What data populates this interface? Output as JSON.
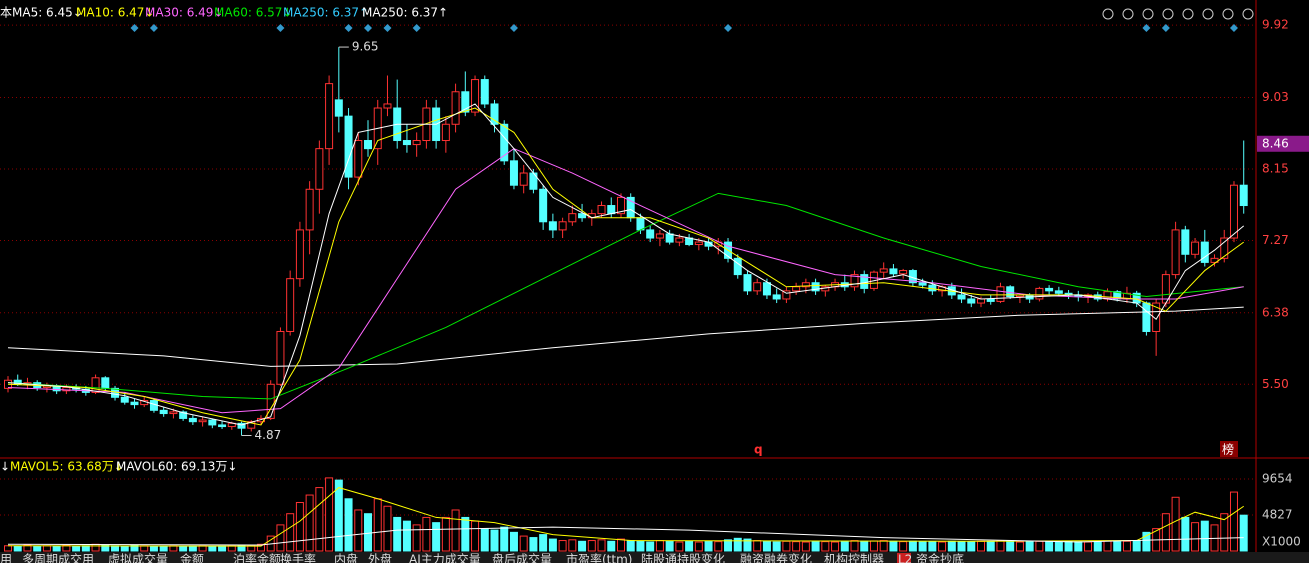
{
  "chart_data": {
    "type": "candlestick",
    "header_legend": [
      {
        "text": "本",
        "color": "#ffffff"
      },
      {
        "text": "MA5: 6.45↓",
        "color": "#ffffff"
      },
      {
        "text": "MA10: 6.47↓",
        "color": "#ffff00"
      },
      {
        "text": "MA30: 6.49↓",
        "color": "#ff66ff"
      },
      {
        "text": "MA60: 6.57↓",
        "color": "#00e600"
      },
      {
        "text": "MA250: 6.37↑",
        "color": "#33ccff"
      },
      {
        "text": "MA250: 6.37↑",
        "color": "#ffffff"
      }
    ],
    "ylim": [
      4.63,
      10.18
    ],
    "yticks": [
      9.92,
      9.03,
      8.15,
      7.27,
      6.38,
      {
        "value": 5.5,
        "label": "5.50"
      }
    ],
    "price_tag": 8.46,
    "up_color": "#ff3232",
    "down_color": "#54ffff",
    "grid_color": "#8b0000",
    "candles": [
      [
        5.45,
        5.6,
        5.4,
        5.55
      ],
      [
        5.55,
        5.62,
        5.48,
        5.5
      ],
      [
        5.5,
        5.58,
        5.44,
        5.52
      ],
      [
        5.52,
        5.55,
        5.42,
        5.46
      ],
      [
        5.46,
        5.52,
        5.4,
        5.48
      ],
      [
        5.48,
        5.5,
        5.38,
        5.42
      ],
      [
        5.42,
        5.5,
        5.38,
        5.46
      ],
      [
        5.46,
        5.5,
        5.4,
        5.44
      ],
      [
        5.44,
        5.48,
        5.36,
        5.4
      ],
      [
        5.4,
        5.62,
        5.38,
        5.58
      ],
      [
        5.58,
        5.6,
        5.42,
        5.45
      ],
      [
        5.45,
        5.48,
        5.3,
        5.34
      ],
      [
        5.34,
        5.4,
        5.25,
        5.28
      ],
      [
        5.28,
        5.32,
        5.2,
        5.25
      ],
      [
        5.25,
        5.35,
        5.22,
        5.3
      ],
      [
        5.3,
        5.32,
        5.15,
        5.18
      ],
      [
        5.18,
        5.22,
        5.1,
        5.14
      ],
      [
        5.14,
        5.2,
        5.08,
        5.16
      ],
      [
        5.16,
        5.18,
        5.05,
        5.08
      ],
      [
        5.08,
        5.12,
        5.0,
        5.04
      ],
      [
        5.04,
        5.1,
        4.98,
        5.06
      ],
      [
        5.06,
        5.08,
        4.96,
        5.0
      ],
      [
        5.0,
        5.05,
        4.95,
        4.98
      ],
      [
        4.98,
        5.04,
        4.94,
        5.02
      ],
      [
        5.02,
        5.04,
        4.87,
        4.96
      ],
      [
        4.96,
        5.06,
        4.92,
        5.04
      ],
      [
        5.04,
        5.12,
        5.0,
        5.08
      ],
      [
        5.08,
        5.55,
        5.06,
        5.5
      ],
      [
        5.5,
        6.2,
        5.48,
        6.15
      ],
      [
        6.15,
        6.9,
        6.1,
        6.8
      ],
      [
        6.8,
        7.5,
        6.7,
        7.4
      ],
      [
        7.4,
        8.0,
        7.1,
        7.9
      ],
      [
        7.9,
        8.5,
        7.6,
        8.4
      ],
      [
        8.4,
        9.3,
        8.2,
        9.2
      ],
      [
        9.0,
        9.65,
        8.6,
        8.8
      ],
      [
        8.8,
        8.9,
        7.9,
        8.05
      ],
      [
        8.05,
        8.6,
        7.95,
        8.5
      ],
      [
        8.5,
        8.75,
        8.3,
        8.4
      ],
      [
        8.4,
        9.0,
        8.2,
        8.9
      ],
      [
        8.9,
        9.3,
        8.8,
        8.95
      ],
      [
        8.9,
        9.25,
        8.4,
        8.5
      ],
      [
        8.5,
        8.7,
        8.35,
        8.45
      ],
      [
        8.45,
        8.6,
        8.3,
        8.5
      ],
      [
        8.5,
        9.0,
        8.4,
        8.9
      ],
      [
        8.9,
        9.0,
        8.4,
        8.5
      ],
      [
        8.5,
        8.8,
        8.35,
        8.7
      ],
      [
        8.7,
        9.2,
        8.6,
        9.1
      ],
      [
        9.1,
        9.35,
        8.8,
        8.85
      ],
      [
        8.85,
        9.3,
        8.8,
        9.25
      ],
      [
        9.25,
        9.3,
        8.9,
        8.95
      ],
      [
        8.95,
        9.0,
        8.6,
        8.7
      ],
      [
        8.7,
        8.75,
        8.2,
        8.25
      ],
      [
        8.25,
        8.4,
        7.9,
        7.95
      ],
      [
        7.95,
        8.2,
        7.85,
        8.1
      ],
      [
        8.1,
        8.15,
        7.85,
        7.9
      ],
      [
        7.9,
        7.95,
        7.4,
        7.5
      ],
      [
        7.5,
        7.6,
        7.3,
        7.4
      ],
      [
        7.4,
        7.55,
        7.3,
        7.5
      ],
      [
        7.5,
        7.7,
        7.45,
        7.6
      ],
      [
        7.6,
        7.72,
        7.5,
        7.55
      ],
      [
        7.55,
        7.65,
        7.45,
        7.6
      ],
      [
        7.6,
        7.75,
        7.55,
        7.7
      ],
      [
        7.7,
        7.8,
        7.55,
        7.6
      ],
      [
        7.6,
        7.85,
        7.55,
        7.8
      ],
      [
        7.8,
        7.85,
        7.5,
        7.55
      ],
      [
        7.55,
        7.6,
        7.35,
        7.4
      ],
      [
        7.4,
        7.45,
        7.25,
        7.3
      ],
      [
        7.3,
        7.4,
        7.2,
        7.35
      ],
      [
        7.35,
        7.4,
        7.22,
        7.25
      ],
      [
        7.25,
        7.35,
        7.2,
        7.3
      ],
      [
        7.3,
        7.35,
        7.2,
        7.22
      ],
      [
        7.22,
        7.3,
        7.15,
        7.25
      ],
      [
        7.25,
        7.3,
        7.15,
        7.2
      ],
      [
        7.2,
        7.3,
        7.1,
        7.25
      ],
      [
        7.25,
        7.3,
        7.0,
        7.05
      ],
      [
        7.05,
        7.1,
        6.8,
        6.85
      ],
      [
        6.85,
        6.9,
        6.6,
        6.65
      ],
      [
        6.65,
        6.8,
        6.6,
        6.75
      ],
      [
        6.75,
        6.8,
        6.55,
        6.6
      ],
      [
        6.6,
        6.68,
        6.5,
        6.55
      ],
      [
        6.55,
        6.7,
        6.5,
        6.65
      ],
      [
        6.65,
        6.75,
        6.6,
        6.7
      ],
      [
        6.7,
        6.8,
        6.62,
        6.75
      ],
      [
        6.75,
        6.8,
        6.6,
        6.65
      ],
      [
        6.65,
        6.72,
        6.58,
        6.7
      ],
      [
        6.7,
        6.8,
        6.65,
        6.75
      ],
      [
        6.75,
        6.85,
        6.65,
        6.7
      ],
      [
        6.7,
        6.9,
        6.65,
        6.85
      ],
      [
        6.85,
        6.9,
        6.62,
        6.68
      ],
      [
        6.68,
        6.9,
        6.65,
        6.88
      ],
      [
        6.88,
        7.0,
        6.8,
        6.92
      ],
      [
        6.92,
        6.98,
        6.82,
        6.86
      ],
      [
        6.86,
        6.92,
        6.8,
        6.9
      ],
      [
        6.9,
        6.92,
        6.7,
        6.75
      ],
      [
        6.75,
        6.8,
        6.68,
        6.72
      ],
      [
        6.72,
        6.78,
        6.6,
        6.65
      ],
      [
        6.65,
        6.72,
        6.58,
        6.7
      ],
      [
        6.7,
        6.75,
        6.55,
        6.6
      ],
      [
        6.6,
        6.68,
        6.5,
        6.55
      ],
      [
        6.55,
        6.6,
        6.45,
        6.5
      ],
      [
        6.5,
        6.58,
        6.45,
        6.55
      ],
      [
        6.55,
        6.6,
        6.48,
        6.52
      ],
      [
        6.52,
        6.75,
        6.5,
        6.7
      ],
      [
        6.7,
        6.72,
        6.55,
        6.58
      ],
      [
        6.58,
        6.62,
        6.5,
        6.6
      ],
      [
        6.6,
        6.62,
        6.5,
        6.55
      ],
      [
        6.55,
        6.7,
        6.52,
        6.68
      ],
      [
        6.68,
        6.72,
        6.6,
        6.65
      ],
      [
        6.65,
        6.7,
        6.58,
        6.62
      ],
      [
        6.62,
        6.66,
        6.55,
        6.6
      ],
      [
        6.6,
        6.65,
        6.52,
        6.58
      ],
      [
        6.58,
        6.62,
        6.5,
        6.6
      ],
      [
        6.6,
        6.64,
        6.52,
        6.55
      ],
      [
        6.55,
        6.68,
        6.52,
        6.64
      ],
      [
        6.64,
        6.66,
        6.52,
        6.55
      ],
      [
        6.55,
        6.7,
        6.5,
        6.62
      ],
      [
        6.62,
        6.65,
        6.45,
        6.5
      ],
      [
        6.5,
        6.52,
        6.1,
        6.15
      ],
      [
        6.15,
        6.55,
        5.85,
        6.5
      ],
      [
        6.5,
        6.9,
        6.45,
        6.85
      ],
      [
        6.85,
        7.5,
        6.8,
        7.4
      ],
      [
        7.4,
        7.45,
        7.0,
        7.1
      ],
      [
        7.1,
        7.3,
        7.05,
        7.25
      ],
      [
        7.25,
        7.4,
        6.95,
        7.0
      ],
      [
        7.0,
        7.1,
        6.95,
        7.05
      ],
      [
        7.05,
        7.4,
        7.0,
        7.3
      ],
      [
        7.3,
        8.0,
        7.25,
        7.95
      ],
      [
        7.95,
        8.5,
        7.6,
        7.7
      ]
    ],
    "ma_series": [
      {
        "color": "#ffffff",
        "x": [
          0,
          16,
          27,
          40,
          56,
          72,
          88,
          104,
          120,
          127
        ],
        "values": [
          5.95,
          5.85,
          5.72,
          5.75,
          5.95,
          6.12,
          6.25,
          6.35,
          6.4,
          6.45
        ]
      },
      {
        "color": "#00e600",
        "x": [
          0,
          10,
          20,
          27,
          35,
          45,
          55,
          65,
          73,
          80,
          90,
          100,
          110,
          117,
          127
        ],
        "values": [
          5.52,
          5.45,
          5.35,
          5.32,
          5.7,
          6.2,
          6.8,
          7.4,
          7.85,
          7.7,
          7.3,
          6.95,
          6.7,
          6.58,
          6.7
        ]
      },
      {
        "color": "#ff66ff",
        "x": [
          0,
          12,
          22,
          28,
          34,
          40,
          46,
          52,
          58,
          65,
          74,
          85,
          95,
          105,
          115,
          120,
          127
        ],
        "values": [
          5.46,
          5.4,
          5.15,
          5.2,
          5.7,
          6.8,
          7.9,
          8.4,
          8.1,
          7.7,
          7.2,
          6.85,
          6.75,
          6.6,
          6.55,
          6.55,
          6.7
        ]
      },
      {
        "color": "#ffff00",
        "x": [
          0,
          8,
          14,
          20,
          26,
          30,
          34,
          38,
          44,
          48,
          52,
          56,
          60,
          66,
          72,
          76,
          80,
          90,
          100,
          110,
          116,
          119,
          123,
          127
        ],
        "values": [
          5.5,
          5.46,
          5.35,
          5.15,
          5.0,
          5.8,
          7.5,
          8.5,
          8.75,
          8.9,
          8.6,
          7.9,
          7.55,
          7.55,
          7.3,
          7.0,
          6.7,
          6.75,
          6.6,
          6.6,
          6.55,
          6.4,
          6.9,
          7.25
        ]
      },
      {
        "color": "#ffffff",
        "x": [
          0,
          6,
          12,
          18,
          24,
          27,
          30,
          33,
          36,
          40,
          44,
          48,
          52,
          56,
          60,
          64,
          68,
          72,
          76,
          80,
          88,
          92,
          100,
          110,
          116,
          118,
          121,
          124,
          127
        ],
        "values": [
          5.52,
          5.47,
          5.36,
          5.15,
          5.0,
          5.1,
          6.1,
          7.6,
          8.6,
          8.7,
          8.7,
          8.95,
          8.4,
          7.8,
          7.55,
          7.65,
          7.35,
          7.25,
          6.9,
          6.62,
          6.75,
          6.85,
          6.55,
          6.6,
          6.5,
          6.3,
          6.9,
          7.15,
          7.45
        ]
      }
    ],
    "event_markers": [
      13,
      15,
      28,
      35,
      37,
      39,
      42,
      52,
      74,
      117,
      119,
      126
    ],
    "marker_color": "#3399cc",
    "annotations": [
      "q",
      "榜"
    ],
    "volume_legend": [
      {
        "text": "↓",
        "color": "#ffffff"
      },
      {
        "text": "MAVOL5: 63.68万↓",
        "color": "#ffff00"
      },
      {
        "text": "MAVOL60: 69.13万↓",
        "color": "#ffffff"
      }
    ],
    "volume_ylim": [
      0,
      11930
    ],
    "volume_yticks": [
      9654,
      4827
    ],
    "volume_unit": "X1000",
    "volume": [
      700,
      650,
      800,
      600,
      700,
      650,
      750,
      600,
      700,
      900,
      800,
      700,
      650,
      750,
      700,
      600,
      650,
      700,
      600,
      650,
      700,
      600,
      650,
      700,
      800,
      750,
      900,
      2000,
      3500,
      5000,
      6500,
      7500,
      8500,
      9800,
      9500,
      7000,
      5500,
      5000,
      7000,
      6000,
      4500,
      4000,
      3500,
      4500,
      3800,
      4500,
      5500,
      4500,
      4000,
      3000,
      2800,
      3200,
      2500,
      2000,
      1800,
      2200,
      1600,
      1400,
      1500,
      1300,
      1400,
      1500,
      1300,
      1600,
      1400,
      1300,
      1200,
      1400,
      1300,
      1200,
      1300,
      1200,
      1300,
      1250,
      1500,
      1700,
      1600,
      1400,
      1300,
      1200,
      1300,
      1250,
      1200,
      1300,
      1250,
      1200,
      1300,
      1400,
      1300,
      1350,
      1400,
      1300,
      1250,
      1300,
      1200,
      1250,
      1200,
      1300,
      1250,
      1200,
      1300,
      1250,
      1400,
      1300,
      1200,
      1250,
      1300,
      1250,
      1200,
      1300,
      1250,
      1200,
      1300,
      1350,
      1250,
      1300,
      1400,
      2500,
      3000,
      5000,
      7200,
      4500,
      3800,
      4000,
      3500,
      5000,
      7900,
      4800
    ],
    "volume_ma": [
      {
        "color": "#ffff00",
        "x": [
          0,
          26,
          30,
          34,
          38,
          44,
          50,
          56,
          64,
          100,
          116,
          120,
          122,
          125,
          127
        ],
        "values": [
          700,
          650,
          4000,
          8500,
          7000,
          4500,
          3800,
          2200,
          1400,
          1300,
          1400,
          4000,
          5200,
          4200,
          6000
        ]
      },
      {
        "color": "#ffffff",
        "x": [
          0,
          26,
          40,
          56,
          70,
          90,
          110,
          127
        ],
        "values": [
          900,
          800,
          2800,
          3200,
          2800,
          1800,
          1200,
          1800
        ]
      }
    ],
    "tabs": [
      "用",
      "多周期成交用",
      "虚拟成交量",
      "金额",
      "泊率金额",
      "换手率",
      "内盘",
      "外盘",
      "AI主力成交量",
      "盘后成交量",
      "市盈率(ttm)",
      "陆股通持股变化",
      "融资融券变化",
      "机构控制器",
      "L2",
      "资金抄底"
    ]
  }
}
